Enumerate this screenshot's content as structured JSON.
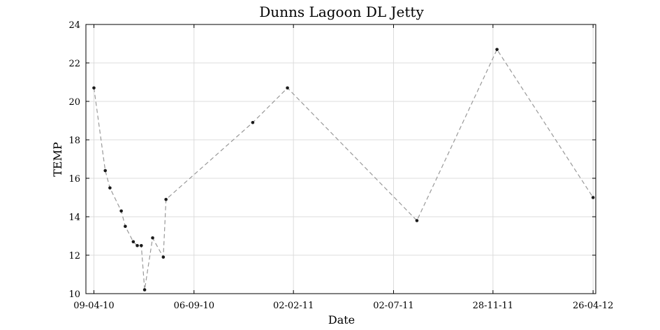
{
  "chart_data": {
    "type": "line",
    "title": "Dunns Lagoon DL Jetty",
    "xlabel": "Date",
    "ylabel": "TEMP",
    "ylim": [
      10,
      24
    ],
    "y_ticks": [
      10,
      12,
      14,
      16,
      18,
      20,
      22,
      24
    ],
    "x_tick_labels": [
      "09-04-10",
      "06-09-10",
      "02-02-11",
      "02-07-11",
      "28-11-11",
      "26-04-12"
    ],
    "x_tick_dates": [
      "2010-04-09",
      "2010-09-06",
      "2011-02-02",
      "2011-07-02",
      "2011-11-28",
      "2012-04-26"
    ],
    "xlim": [
      "2010-03-28",
      "2012-04-30"
    ],
    "grid": true,
    "series": [
      {
        "x": [
          "2010-04-09",
          "2010-04-26",
          "2010-05-03",
          "2010-05-20",
          "2010-05-26",
          "2010-06-07",
          "2010-06-13",
          "2010-06-19",
          "2010-06-24",
          "2010-07-06",
          "2010-07-22",
          "2010-07-26",
          "2010-12-03",
          "2011-01-24",
          "2011-08-06",
          "2011-12-04",
          "2012-04-26"
        ],
        "y": [
          20.7,
          16.4,
          15.5,
          14.3,
          13.5,
          12.7,
          12.5,
          12.5,
          10.2,
          12.9,
          11.9,
          14.9,
          18.9,
          20.7,
          13.8,
          22.7,
          15.0
        ]
      }
    ]
  }
}
